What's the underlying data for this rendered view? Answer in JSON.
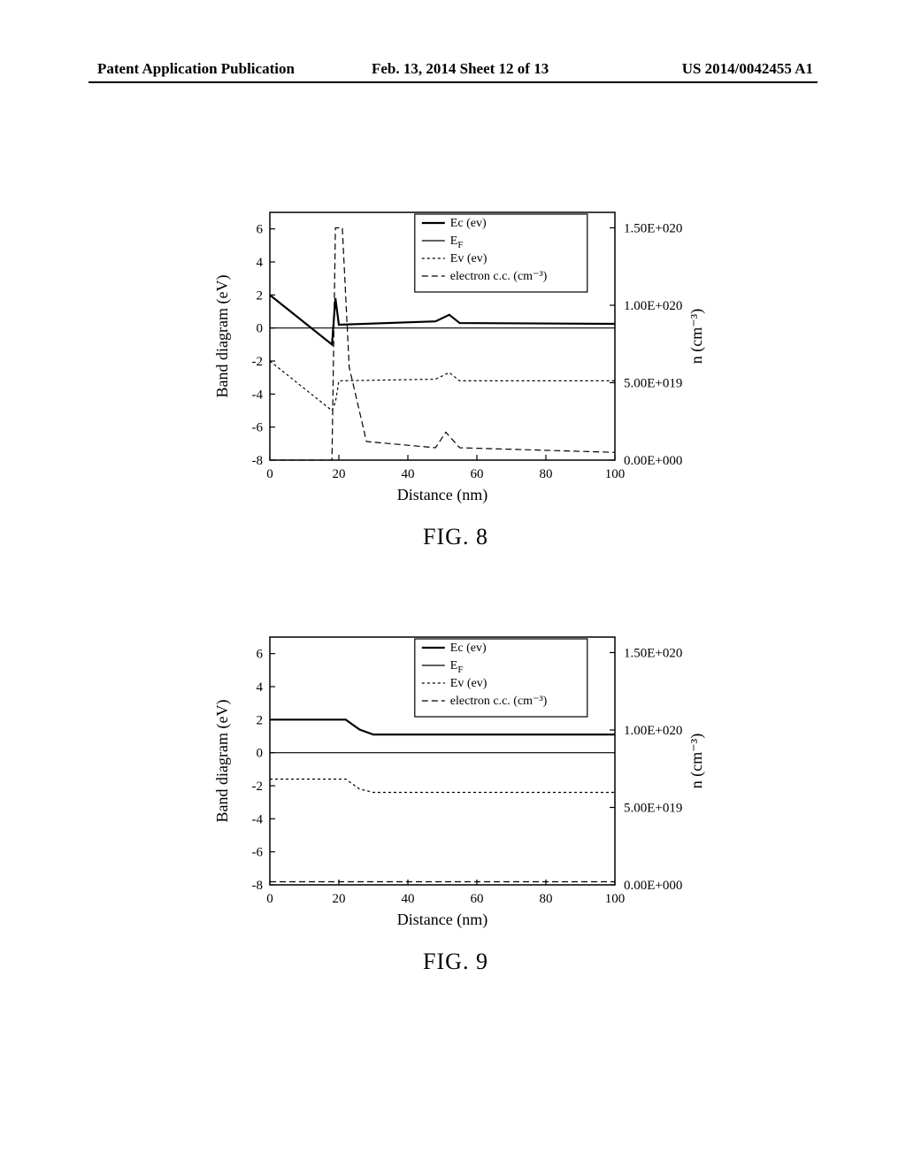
{
  "header": {
    "left": "Patent Application Publication",
    "center": "Feb. 13, 2014  Sheet 12 of 13",
    "right": "US 2014/0042455 A1"
  },
  "figures": [
    {
      "caption": "FIG.  8",
      "xlabel": "Distance (nm)",
      "ylabel_left": "Band diagram (eV)",
      "ylabel_right": "n (cm⁻³)",
      "x_ticks": [
        0,
        20,
        40,
        60,
        80,
        100
      ],
      "y_left_ticks": [
        -8,
        -6,
        -4,
        -2,
        0,
        2,
        4,
        6
      ],
      "y_right_ticks": [
        {
          "v": 0.0,
          "label": "0.00E+000"
        },
        {
          "v": 0.5,
          "label": "5.00E+019"
        },
        {
          "v": 1.0,
          "label": "1.00E+020"
        },
        {
          "v": 1.5,
          "label": "1.50E+020"
        }
      ],
      "xlim": [
        0,
        100
      ],
      "ylim_left": [
        -8,
        7
      ],
      "ylim_right": [
        0,
        1.6
      ],
      "legend": [
        {
          "label": "Ec (ev)",
          "dash": "",
          "weight": 2.2
        },
        {
          "label": "E_F",
          "dash": "",
          "weight": 1.2
        },
        {
          "label": "Ev (ev)",
          "dash": "3,3",
          "weight": 1.2
        },
        {
          "label": "electron c.c. (cm⁻³)",
          "dash": "7,4",
          "weight": 1.2
        }
      ],
      "series": {
        "Ec": {
          "dash": "",
          "weight": 2.2,
          "data": [
            [
              0,
              2.0
            ],
            [
              18,
              -1.0
            ],
            [
              19,
              1.8
            ],
            [
              20,
              0.2
            ],
            [
              48,
              0.4
            ],
            [
              52,
              0.8
            ],
            [
              55,
              0.3
            ],
            [
              100,
              0.25
            ]
          ]
        },
        "EF": {
          "dash": "",
          "weight": 1.2,
          "data": [
            [
              0,
              0.0
            ],
            [
              100,
              0.0
            ]
          ]
        },
        "Ev": {
          "dash": "3,3",
          "weight": 1.2,
          "data": [
            [
              0,
              -2.0
            ],
            [
              18,
              -5.0
            ],
            [
              19,
              -4.5
            ],
            [
              20,
              -3.2
            ],
            [
              48,
              -3.1
            ],
            [
              52,
              -2.7
            ],
            [
              55,
              -3.2
            ],
            [
              100,
              -3.2
            ]
          ]
        },
        "n": {
          "dash": "7,4",
          "weight": 1.2,
          "axis": "right",
          "data": [
            [
              0,
              0.0
            ],
            [
              18,
              0.0
            ],
            [
              19,
              1.5
            ],
            [
              21,
              1.5
            ],
            [
              23,
              0.6
            ],
            [
              28,
              0.12
            ],
            [
              48,
              0.08
            ],
            [
              51,
              0.18
            ],
            [
              55,
              0.08
            ],
            [
              100,
              0.05
            ]
          ]
        }
      },
      "colors": {
        "line": "#000000",
        "bg": "#ffffff"
      },
      "font_sizes": {
        "axis_label": 18,
        "tick": 15,
        "legend": 14,
        "caption": 26
      }
    },
    {
      "caption": "FIG.  9",
      "xlabel": "Distance (nm)",
      "ylabel_left": "Band diagram (eV)",
      "ylabel_right": "n (cm⁻³)",
      "x_ticks": [
        0,
        20,
        40,
        60,
        80,
        100
      ],
      "y_left_ticks": [
        -8,
        -6,
        -4,
        -2,
        0,
        2,
        4,
        6
      ],
      "y_right_ticks": [
        {
          "v": 0.0,
          "label": "0.00E+000"
        },
        {
          "v": 0.5,
          "label": "5.00E+019"
        },
        {
          "v": 1.0,
          "label": "1.00E+020"
        },
        {
          "v": 1.5,
          "label": "1.50E+020"
        }
      ],
      "xlim": [
        0,
        100
      ],
      "ylim_left": [
        -8,
        7
      ],
      "ylim_right": [
        0,
        1.6
      ],
      "legend": [
        {
          "label": "Ec (ev)",
          "dash": "",
          "weight": 2.2
        },
        {
          "label": "E_F",
          "dash": "",
          "weight": 1.2
        },
        {
          "label": "Ev (ev)",
          "dash": "3,3",
          "weight": 1.2
        },
        {
          "label": "electron c.c. (cm⁻³)",
          "dash": "7,4",
          "weight": 1.2
        }
      ],
      "series": {
        "Ec": {
          "dash": "",
          "weight": 2.2,
          "data": [
            [
              0,
              2.0
            ],
            [
              22,
              2.0
            ],
            [
              26,
              1.4
            ],
            [
              30,
              1.1
            ],
            [
              100,
              1.1
            ]
          ]
        },
        "EF": {
          "dash": "",
          "weight": 1.2,
          "data": [
            [
              0,
              0.0
            ],
            [
              100,
              0.0
            ]
          ]
        },
        "Ev": {
          "dash": "3,3",
          "weight": 1.2,
          "data": [
            [
              0,
              -1.6
            ],
            [
              22,
              -1.6
            ],
            [
              26,
              -2.2
            ],
            [
              30,
              -2.4
            ],
            [
              100,
              -2.4
            ]
          ]
        },
        "n": {
          "dash": "7,4",
          "weight": 1.2,
          "axis": "right",
          "data": [
            [
              0,
              0.02
            ],
            [
              22,
              0.02
            ],
            [
              30,
              0.02
            ],
            [
              100,
              0.02
            ]
          ]
        }
      },
      "colors": {
        "line": "#000000",
        "bg": "#ffffff"
      },
      "font_sizes": {
        "axis_label": 18,
        "tick": 15,
        "legend": 14,
        "caption": 26
      }
    }
  ]
}
